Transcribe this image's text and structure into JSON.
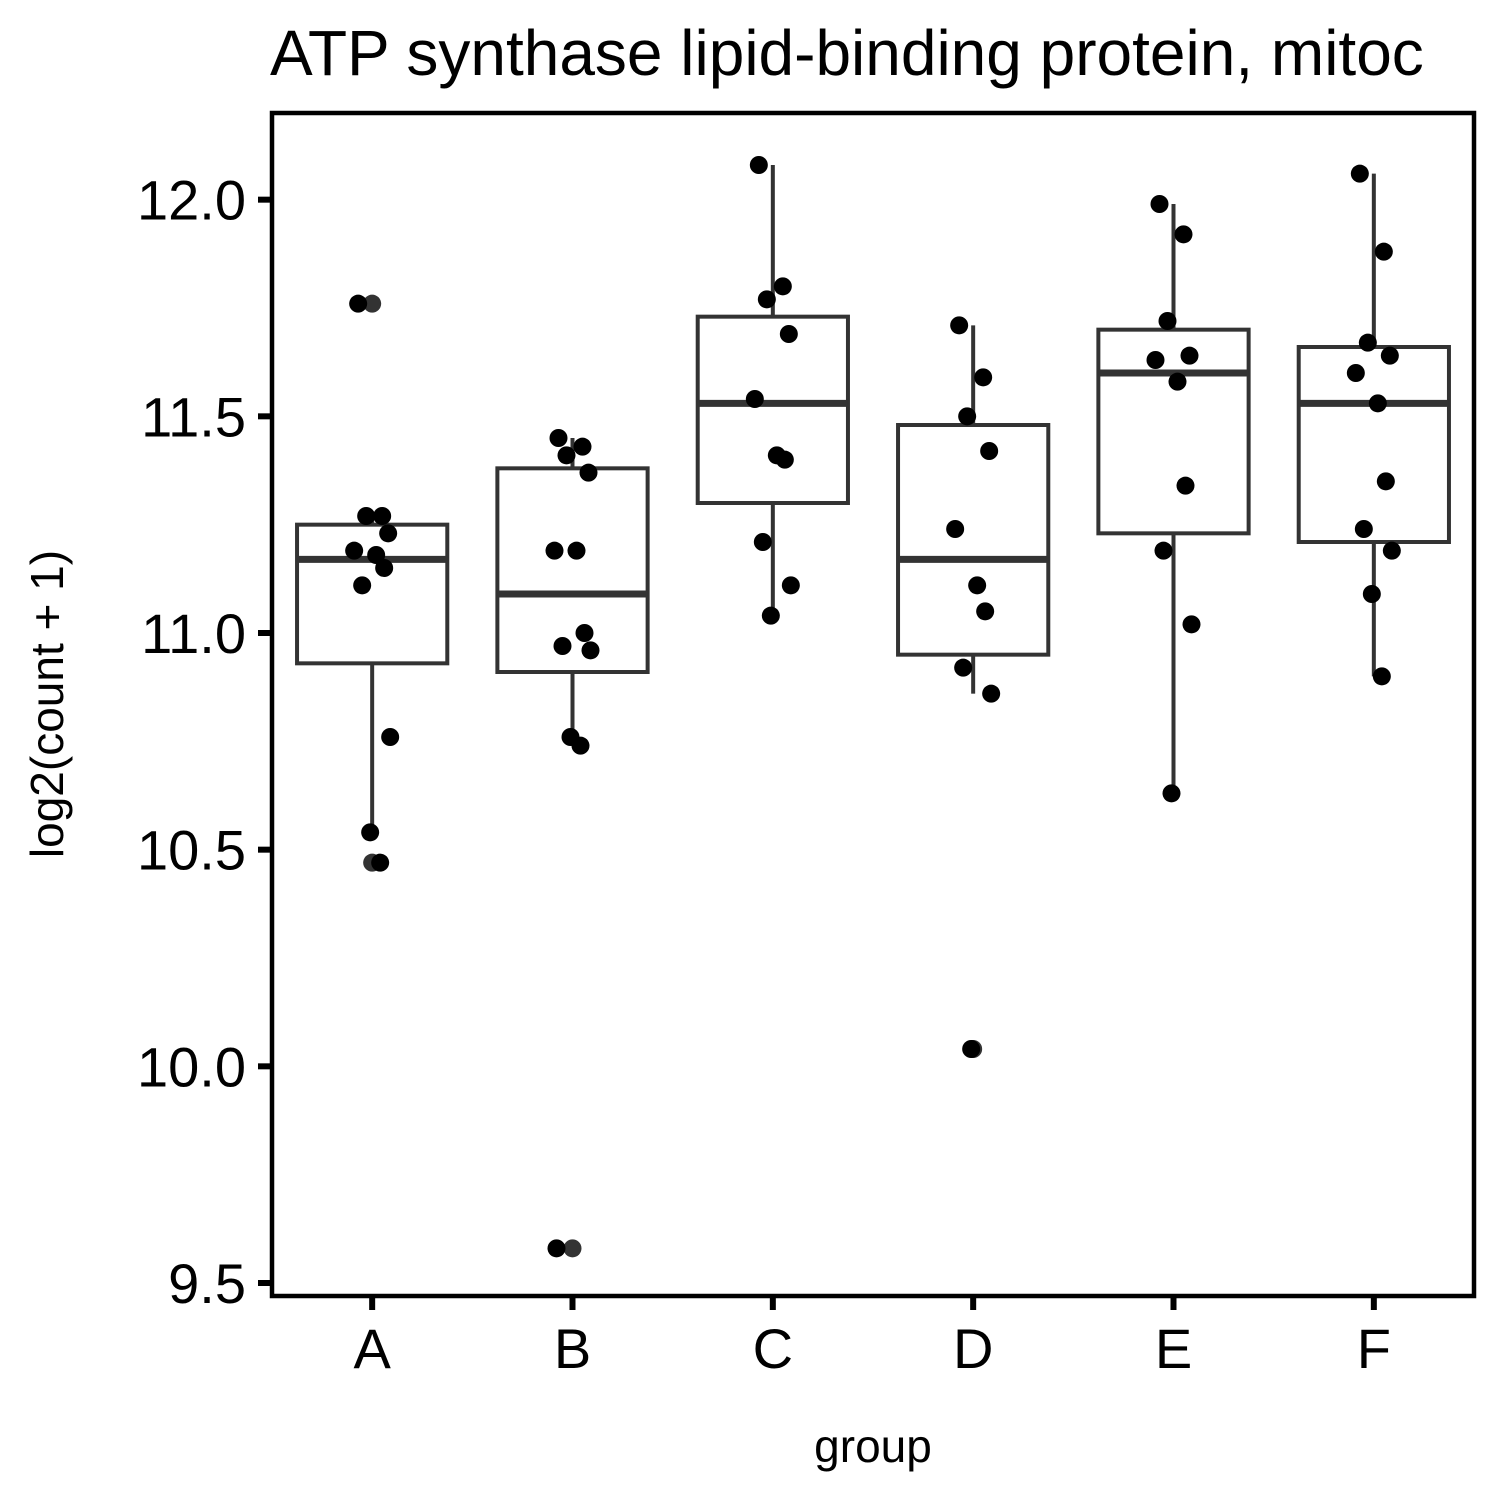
{
  "chart_data": {
    "type": "box",
    "title": "ATP synthase lipid-binding protein, mitoc",
    "xlabel": "group",
    "ylabel": "log2(count + 1)",
    "ylim": [
      9.47,
      12.2
    ],
    "y_ticks": [
      9.5,
      10.0,
      10.5,
      11.0,
      11.5,
      12.0
    ],
    "y_tick_labels": [
      "9.5",
      "10.0",
      "10.5",
      "11.0",
      "11.5",
      "12.0"
    ],
    "categories": [
      "A",
      "B",
      "C",
      "D",
      "E",
      "F"
    ],
    "grid": false,
    "legend": "none",
    "colors": {
      "box_line": "#333333",
      "point": "#000000",
      "outlier": "#333333",
      "frame": "#000000"
    },
    "boxes": [
      {
        "group": "A",
        "q1": 10.93,
        "median": 11.17,
        "q3": 11.25,
        "whisker_low": 10.54,
        "whisker_high": 11.27,
        "outliers": [
          11.76,
          10.47
        ]
      },
      {
        "group": "B",
        "q1": 10.91,
        "median": 11.09,
        "q3": 11.38,
        "whisker_low": 10.74,
        "whisker_high": 11.45,
        "outliers": [
          9.58
        ]
      },
      {
        "group": "C",
        "q1": 11.3,
        "median": 11.53,
        "q3": 11.73,
        "whisker_low": 11.04,
        "whisker_high": 12.08,
        "outliers": []
      },
      {
        "group": "D",
        "q1": 10.95,
        "median": 11.17,
        "q3": 11.48,
        "whisker_low": 10.86,
        "whisker_high": 11.71,
        "outliers": [
          10.04
        ]
      },
      {
        "group": "E",
        "q1": 11.23,
        "median": 11.6,
        "q3": 11.7,
        "whisker_low": 10.63,
        "whisker_high": 11.99,
        "outliers": []
      },
      {
        "group": "F",
        "q1": 11.21,
        "median": 11.53,
        "q3": 11.66,
        "whisker_low": 10.9,
        "whisker_high": 12.06,
        "outliers": []
      }
    ],
    "points": [
      {
        "group": "A",
        "values": [
          11.76,
          11.27,
          11.27,
          11.23,
          11.19,
          11.18,
          11.15,
          11.11,
          10.76,
          10.54,
          10.47
        ]
      },
      {
        "group": "B",
        "values": [
          11.45,
          11.43,
          11.41,
          11.37,
          11.19,
          11.19,
          11.0,
          10.97,
          10.96,
          10.76,
          10.74,
          9.58
        ]
      },
      {
        "group": "C",
        "values": [
          12.08,
          11.8,
          11.77,
          11.69,
          11.54,
          11.41,
          11.4,
          11.21,
          11.11,
          11.04
        ]
      },
      {
        "group": "D",
        "values": [
          11.71,
          11.59,
          11.5,
          11.42,
          11.24,
          11.11,
          11.05,
          10.92,
          10.86,
          10.04
        ]
      },
      {
        "group": "E",
        "values": [
          11.99,
          11.92,
          11.72,
          11.64,
          11.63,
          11.58,
          11.34,
          11.19,
          11.02,
          10.63
        ]
      },
      {
        "group": "F",
        "values": [
          12.06,
          11.88,
          11.67,
          11.64,
          11.6,
          11.53,
          11.35,
          11.24,
          11.19,
          11.09,
          10.9
        ]
      }
    ]
  }
}
